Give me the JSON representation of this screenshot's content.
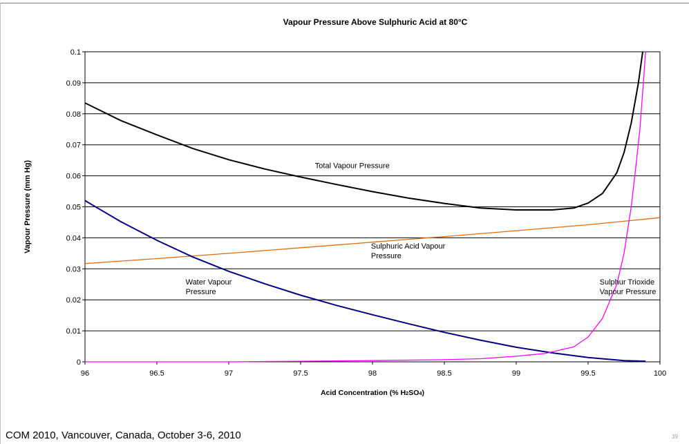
{
  "footer": "COM 2010, Vancouver, Canada, October 3-6, 2010",
  "page_number": "39",
  "chart_data": {
    "type": "line",
    "title": "Vapour Pressure Above Sulphuric Acid at 80°C",
    "xlabel_parts": [
      "Acid Concentration (% H",
      "2",
      "SO",
      "4",
      ")"
    ],
    "ylabel": "Vapour Pressure (mm Hg)",
    "xlim": [
      96,
      100
    ],
    "ylim": [
      0,
      0.1
    ],
    "xticks": [
      96,
      96.5,
      97,
      97.5,
      98,
      98.5,
      99,
      99.5,
      100
    ],
    "yticks": [
      0,
      0.01,
      0.02,
      0.03,
      0.04,
      0.05,
      0.06,
      0.07,
      0.08,
      0.09,
      0.1
    ],
    "ytick_labels": [
      "0",
      "0.01",
      "0.02",
      "0.03",
      "0.04",
      "0.05",
      "0.06",
      "0.07",
      "0.08",
      "0.09",
      "0.1"
    ],
    "grid": "horizontal",
    "series": [
      {
        "name": "Total Vapour Pressure",
        "color": "#000000",
        "label_lines": [
          "Total Vapour Pressure"
        ],
        "label_at": [
          97.6,
          0.0625
        ],
        "x": [
          96,
          96.25,
          96.5,
          96.75,
          97,
          97.25,
          97.5,
          97.75,
          98,
          98.25,
          98.5,
          98.75,
          99,
          99.25,
          99.4,
          99.5,
          99.6,
          99.7,
          99.75,
          99.8,
          99.85,
          99.88
        ],
        "y": [
          0.0835,
          0.0778,
          0.0732,
          0.0688,
          0.0652,
          0.0622,
          0.0596,
          0.0572,
          0.0549,
          0.0528,
          0.0511,
          0.0496,
          0.049,
          0.049,
          0.0496,
          0.0512,
          0.0543,
          0.061,
          0.0675,
          0.077,
          0.09,
          0.1
        ]
      },
      {
        "name": "Sulphuric Acid Vapour Pressure",
        "color": "#e46c0a",
        "label_lines": [
          "Sulphuric Acid Vapour",
          "Pressure"
        ],
        "label_at": [
          97.99,
          0.0365
        ],
        "x": [
          96,
          96.5,
          97,
          97.5,
          98,
          98.5,
          99,
          99.5,
          100
        ],
        "y": [
          0.0317,
          0.0333,
          0.035,
          0.0368,
          0.0386,
          0.0404,
          0.0423,
          0.0442,
          0.0465
        ]
      },
      {
        "name": "Water Vapour Pressure",
        "color": "#000080",
        "label_lines": [
          "Water Vapour",
          "Pressure"
        ],
        "label_at": [
          96.7,
          0.025
        ],
        "x": [
          96,
          96.25,
          96.5,
          96.75,
          97,
          97.25,
          97.5,
          97.75,
          98,
          98.25,
          98.5,
          98.75,
          99,
          99.25,
          99.5,
          99.75,
          99.9
        ],
        "y": [
          0.052,
          0.0452,
          0.0392,
          0.0338,
          0.0292,
          0.0252,
          0.0215,
          0.0182,
          0.0152,
          0.0123,
          0.0095,
          0.007,
          0.0047,
          0.0029,
          0.0014,
          0.0004,
          0.0002
        ]
      },
      {
        "name": "Sulphur Trioxide Vapour Pressure",
        "color": "#ff00ff",
        "label_lines": [
          "Sulphur Trioxide",
          "Vapour Pressure"
        ],
        "label_at": [
          99.58,
          0.025
        ],
        "x": [
          96,
          97,
          97.5,
          98,
          98.5,
          98.75,
          99,
          99.2,
          99.4,
          99.5,
          99.6,
          99.7,
          99.75,
          99.8,
          99.83,
          99.86,
          99.88,
          99.9
        ],
        "y": [
          0,
          0,
          0.0002,
          0.0004,
          0.0007,
          0.001,
          0.0018,
          0.0027,
          0.0048,
          0.008,
          0.014,
          0.025,
          0.035,
          0.05,
          0.062,
          0.075,
          0.087,
          0.1
        ]
      }
    ]
  }
}
